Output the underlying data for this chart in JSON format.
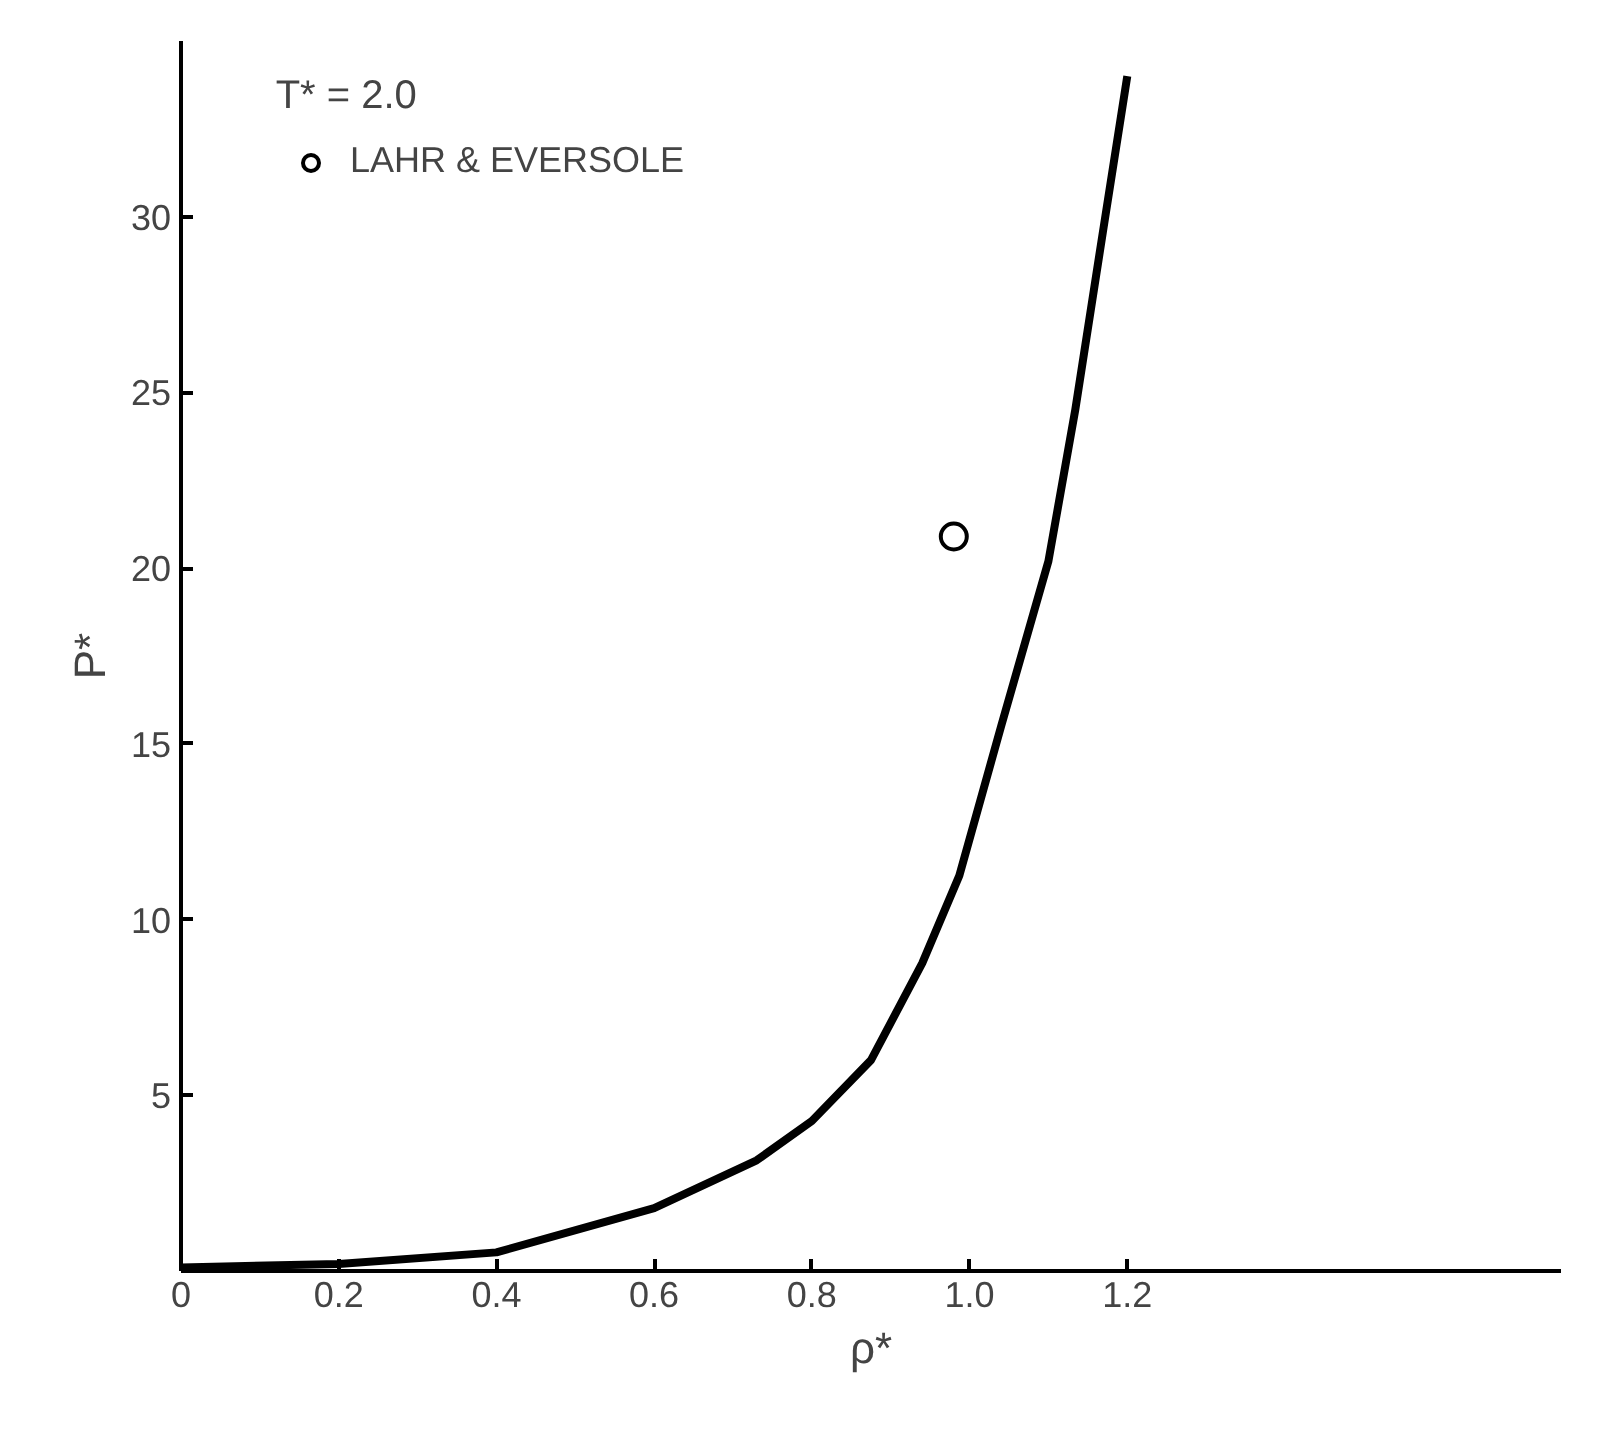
{
  "chart_data": {
    "type": "line",
    "xlabel": "ρ*",
    "ylabel": "P*",
    "annotations": [
      "T* = 2.0"
    ],
    "xlim": [
      0,
      1.75
    ],
    "ylim": [
      0,
      35
    ],
    "xticks": [
      0,
      0.2,
      0.4,
      0.6,
      0.8,
      {
        "value": 1.0,
        "label": "1.0"
      },
      1.2
    ],
    "yticks": [
      5,
      10,
      15,
      20,
      25,
      30
    ],
    "grid": false,
    "legend": "top left",
    "series": [
      {
        "color": "#000000",
        "x": [
          0,
          0.2,
          0.4,
          0.6,
          0.73,
          0.8,
          0.875,
          0.94,
          0.987,
          1.04,
          1.1,
          1.134,
          1.17,
          1.2
        ],
        "values": [
          0.1,
          0.2,
          0.53,
          1.79,
          3.15,
          4.27,
          6.0,
          8.76,
          11.25,
          15.5,
          20.2,
          24.5,
          29.7,
          34.0
        ]
      },
      {
        "type": "scatter",
        "name": "LAHR & EVERSOLE",
        "marker": "circle",
        "color": "#000000",
        "x": [
          0.98
        ],
        "values": [
          20.9
        ]
      }
    ]
  }
}
